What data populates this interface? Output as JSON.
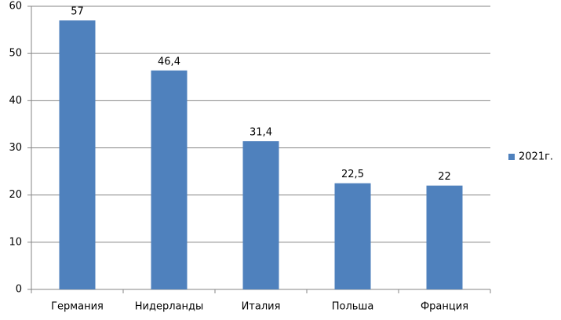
{
  "chart_data": {
    "type": "bar",
    "categories": [
      "Германия",
      "Нидерланды",
      "Италия",
      "Польша",
      "Франция"
    ],
    "series": [
      {
        "name": "2021г.",
        "color": "#4f81bd",
        "values": [
          57,
          46.4,
          31.4,
          22.5,
          22
        ],
        "value_labels": [
          "57",
          "46,4",
          "31,4",
          "22,5",
          "22"
        ]
      }
    ],
    "ylim": [
      0,
      60
    ],
    "yticks": [
      0,
      10,
      20,
      30,
      40,
      50,
      60
    ],
    "grid": true,
    "legend": "right"
  }
}
